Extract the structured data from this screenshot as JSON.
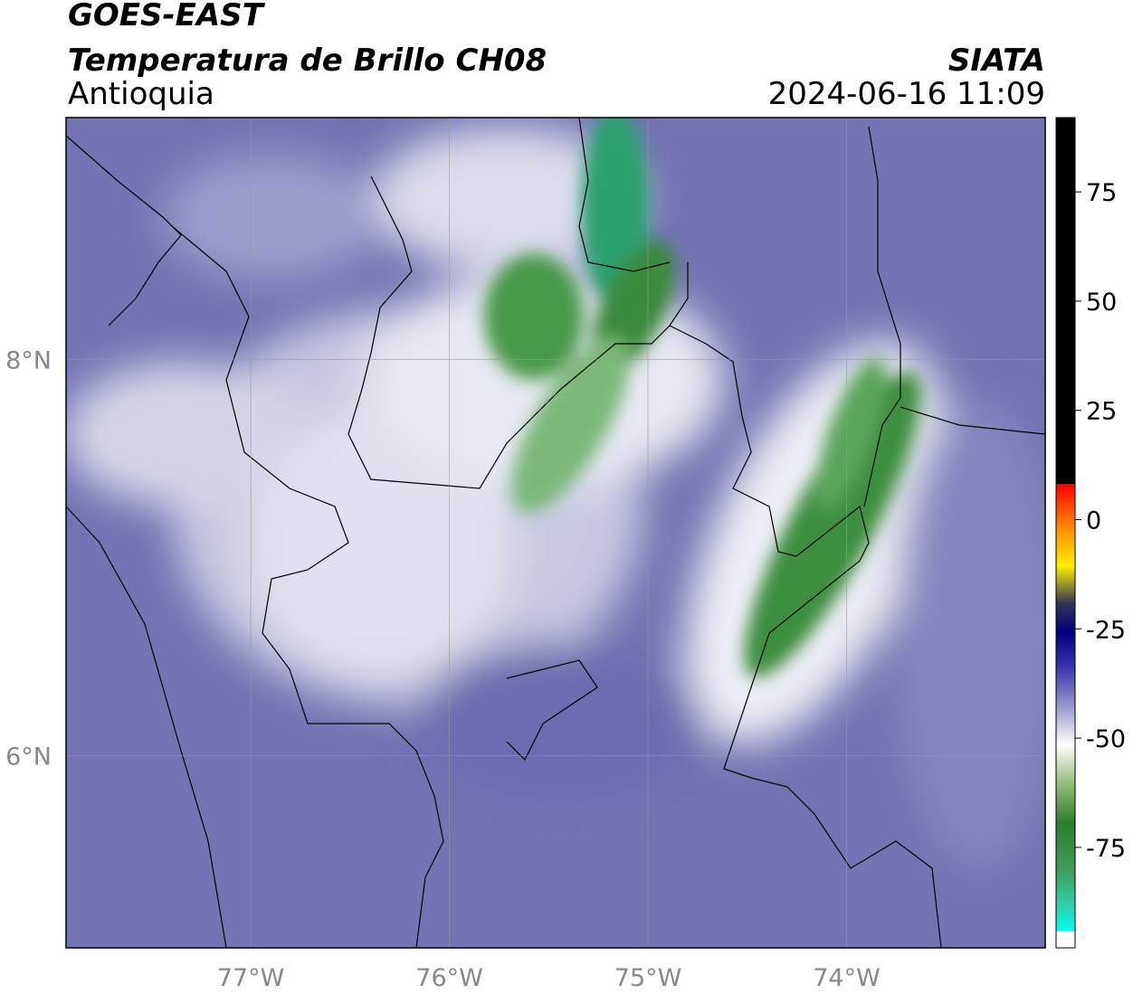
{
  "header": {
    "title": "GOES-EAST",
    "subtitle": "Temperatura de Brillo CH08",
    "region": "Antioquia",
    "source": "SIATA",
    "timestamp": "2024-06-16 11:09"
  },
  "map": {
    "xlim": [
      -77.93,
      -73.0
    ],
    "ylim": [
      5.03,
      9.22
    ],
    "xticks": [
      {
        "value": -77,
        "label": "77°W"
      },
      {
        "value": -76,
        "label": "76°W"
      },
      {
        "value": -75,
        "label": "75°W"
      },
      {
        "value": -74,
        "label": "74°W"
      }
    ],
    "yticks": [
      {
        "value": 6,
        "label": "6°N"
      },
      {
        "value": 8,
        "label": "8°N"
      }
    ],
    "grid": true
  },
  "colorbar": {
    "lim": [
      -98,
      92
    ],
    "ticks": [
      -75,
      -50,
      -25,
      0,
      25,
      50,
      75
    ]
  }
}
